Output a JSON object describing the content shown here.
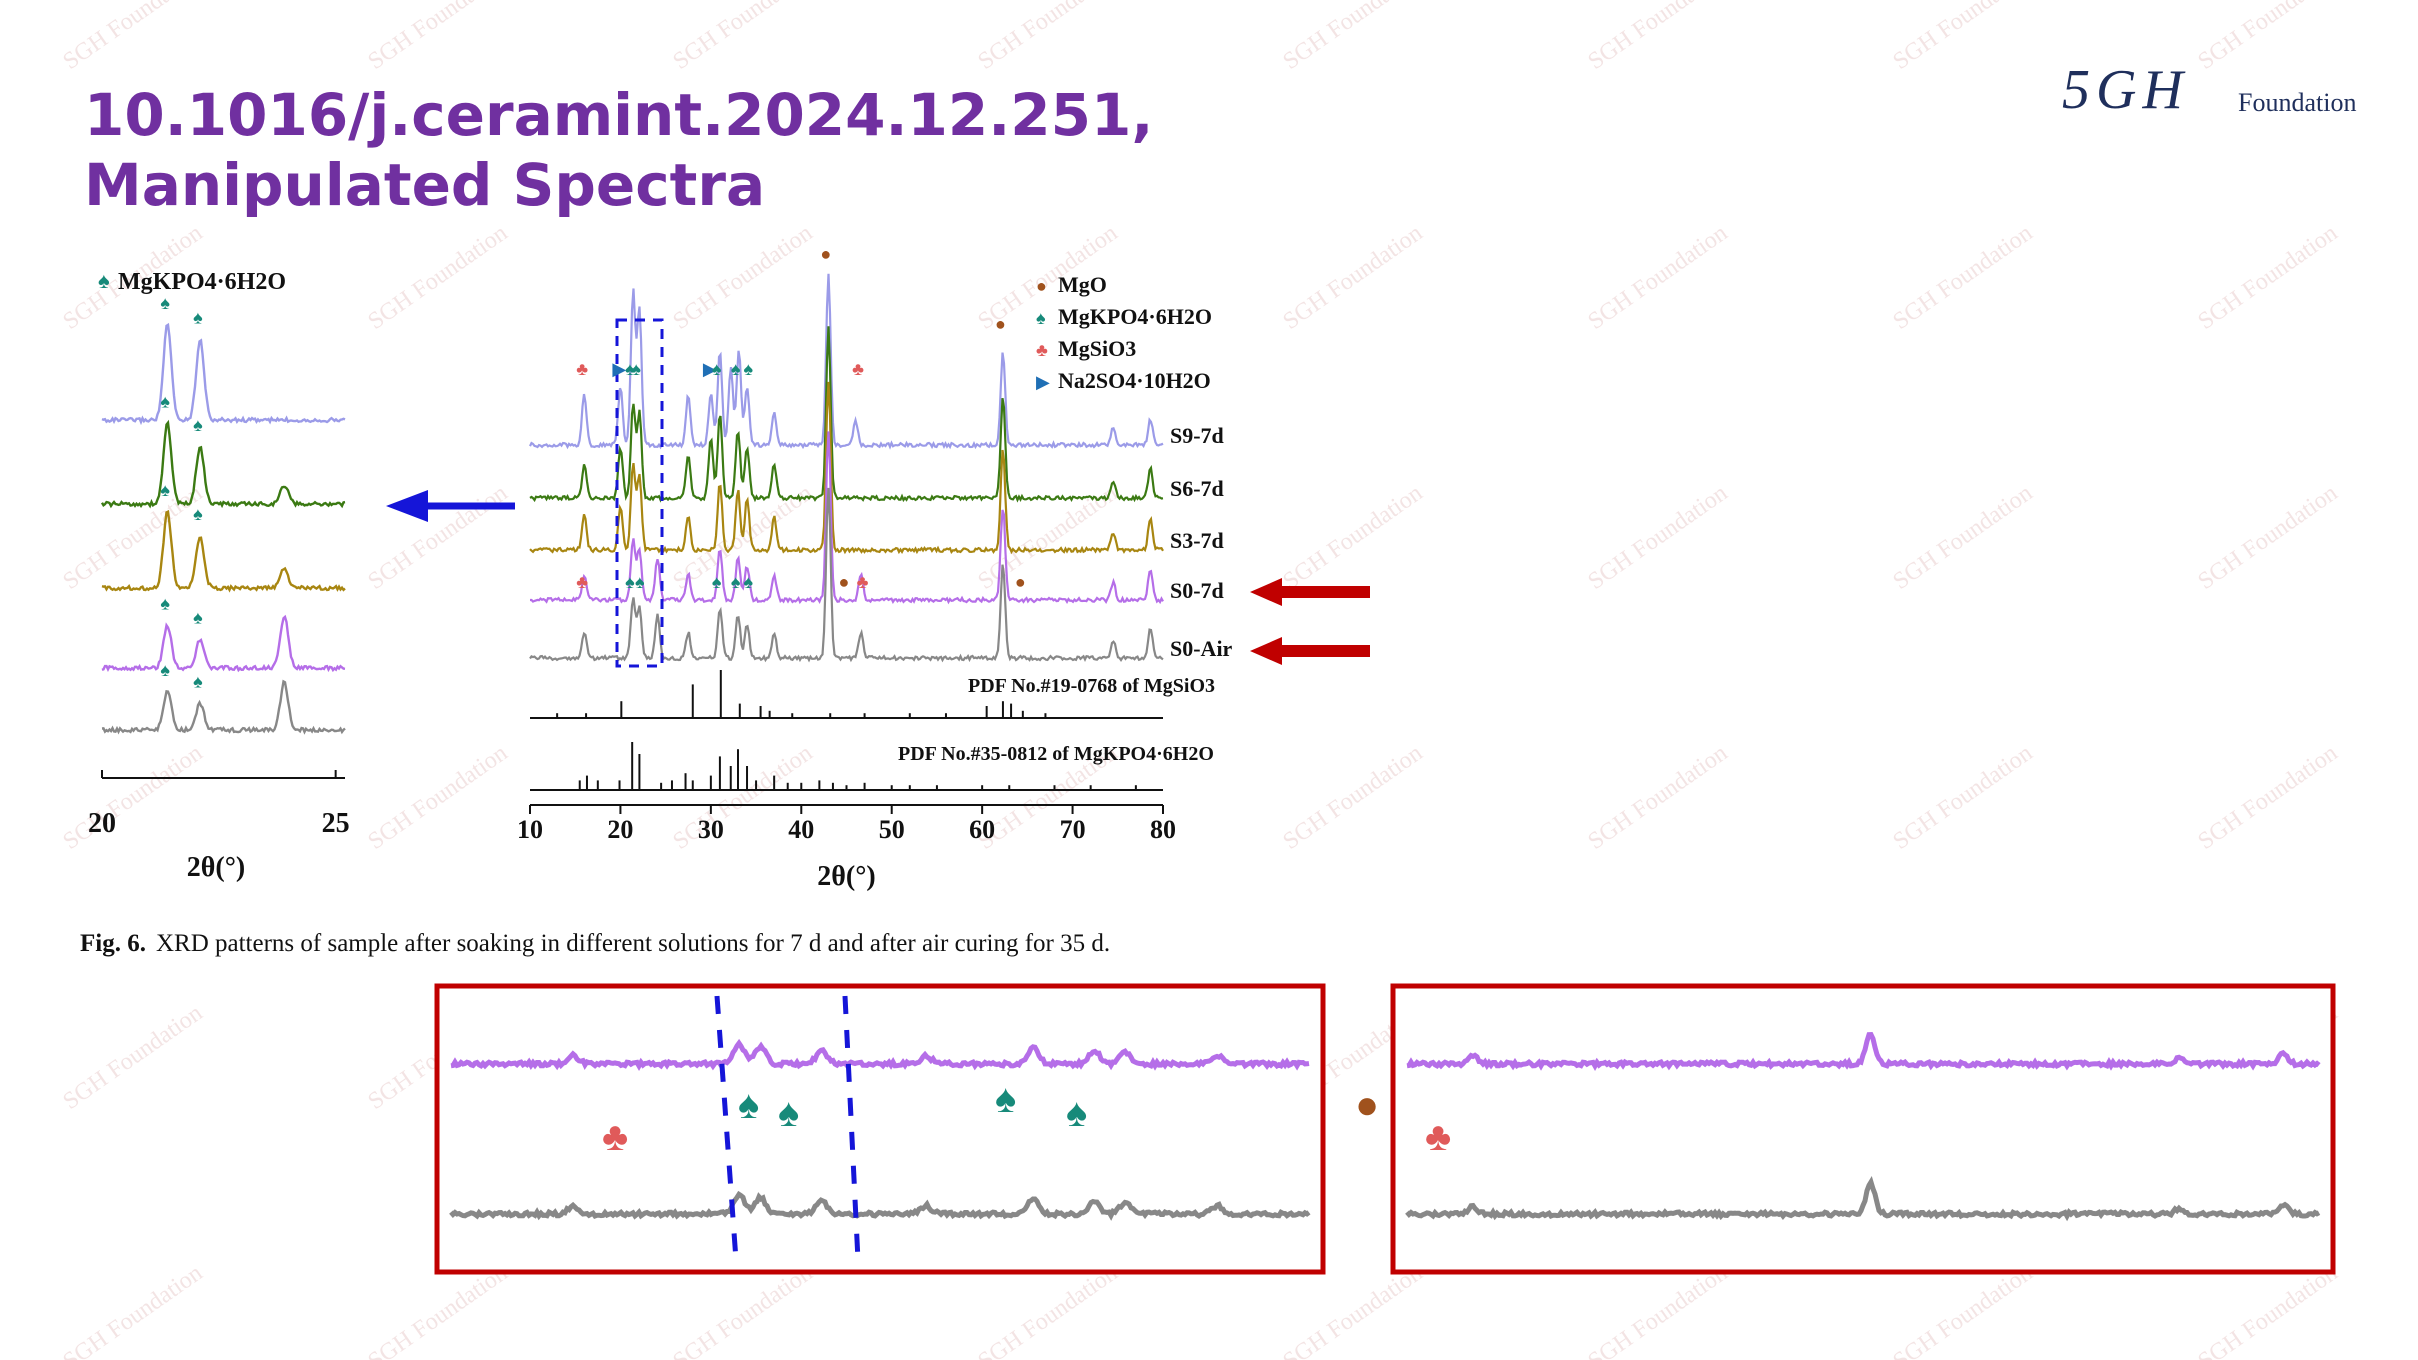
{
  "title": {
    "line1": "10.1016/j.ceramint.2024.12.251,",
    "line2": "Manipulated Spectra"
  },
  "logo": {
    "mark": "5GH",
    "text": "Foundation"
  },
  "watermark": "SGH Foundation",
  "caption": {
    "label": "Fig. 6.",
    "text": "XRD patterns of sample after soaking in different solutions for 7 d and after air curing for 35 d."
  },
  "colors": {
    "title": "#7030a0",
    "red_box": "#c00000",
    "blue_arrow": "#1515d8"
  },
  "chart_data": [
    {
      "type": "line",
      "id": "inset",
      "xlabel": "2θ(°)",
      "xticks": [
        20,
        25
      ],
      "xlim": [
        20,
        25.2
      ],
      "legend": [
        {
          "symbol": "♠",
          "label": "MgKPO4·6H2O"
        }
      ],
      "series": [
        {
          "name": "",
          "color": "#9b9be8",
          "peaks": [
            [
              21.4,
              1.0
            ],
            [
              22.1,
              0.85
            ]
          ]
        },
        {
          "name": "",
          "color": "#3b7a13",
          "peaks": [
            [
              21.4,
              0.85
            ],
            [
              22.1,
              0.6
            ],
            [
              23.9,
              0.2
            ]
          ]
        },
        {
          "name": "",
          "color": "#a88611",
          "peaks": [
            [
              21.4,
              0.8
            ],
            [
              22.1,
              0.55
            ],
            [
              23.9,
              0.2
            ]
          ]
        },
        {
          "name": "",
          "color": "#b56ee8",
          "peaks": [
            [
              21.4,
              0.45
            ],
            [
              22.1,
              0.3
            ],
            [
              23.9,
              0.55
            ]
          ]
        },
        {
          "name": "",
          "color": "#888888",
          "peaks": [
            [
              21.4,
              0.4
            ],
            [
              22.1,
              0.28
            ],
            [
              23.9,
              0.5
            ]
          ]
        }
      ]
    },
    {
      "type": "line",
      "id": "main",
      "xlabel": "2θ(°)",
      "xticks": [
        10,
        20,
        30,
        40,
        50,
        60,
        70,
        80
      ],
      "xlim": [
        10,
        80
      ],
      "legend": [
        {
          "symbol": "●",
          "label": "MgO",
          "color": "#a0521d"
        },
        {
          "symbol": "♠",
          "label": "MgKPO4·6H2O",
          "color": "#178a7a"
        },
        {
          "symbol": "♣",
          "label": "MgSiO3",
          "color": "#e05a5a"
        },
        {
          "symbol": "▶",
          "label": "Na2SO4·10H2O",
          "color": "#1f6fb5"
        }
      ],
      "series": [
        {
          "name": "S9-7d",
          "color": "#9b9be8",
          "peaks": [
            [
              16,
              0.3
            ],
            [
              20,
              0.35
            ],
            [
              21.4,
              0.9
            ],
            [
              22.1,
              0.8
            ],
            [
              27.5,
              0.3
            ],
            [
              30,
              0.3
            ],
            [
              31,
              0.55
            ],
            [
              32.2,
              0.45
            ],
            [
              33.1,
              0.55
            ],
            [
              34,
              0.35
            ],
            [
              37,
              0.2
            ],
            [
              43,
              1.0
            ],
            [
              46,
              0.15
            ],
            [
              62.3,
              0.55
            ],
            [
              74.5,
              0.1
            ],
            [
              78.6,
              0.15
            ]
          ]
        },
        {
          "name": "S6-7d",
          "color": "#3b7a13",
          "peaks": [
            [
              16,
              0.2
            ],
            [
              20,
              0.3
            ],
            [
              21.4,
              0.55
            ],
            [
              22.1,
              0.5
            ],
            [
              27.5,
              0.25
            ],
            [
              30,
              0.35
            ],
            [
              31,
              0.5
            ],
            [
              33,
              0.4
            ],
            [
              34,
              0.3
            ],
            [
              37,
              0.2
            ],
            [
              43,
              1.0
            ],
            [
              62.3,
              0.6
            ],
            [
              74.5,
              0.1
            ],
            [
              78.6,
              0.18
            ]
          ]
        },
        {
          "name": "S3-7d",
          "color": "#a88611",
          "peaks": [
            [
              16,
              0.2
            ],
            [
              20,
              0.25
            ],
            [
              21.4,
              0.5
            ],
            [
              22.1,
              0.45
            ],
            [
              27.5,
              0.2
            ],
            [
              31,
              0.4
            ],
            [
              33,
              0.35
            ],
            [
              34,
              0.3
            ],
            [
              37,
              0.2
            ],
            [
              43,
              1.0
            ],
            [
              62.3,
              0.6
            ],
            [
              74.5,
              0.1
            ],
            [
              78.6,
              0.18
            ]
          ]
        },
        {
          "name": "S0-7d",
          "color": "#b56ee8",
          "peaks": [
            [
              16,
              0.15
            ],
            [
              21.4,
              0.35
            ],
            [
              22.1,
              0.3
            ],
            [
              24.1,
              0.25
            ],
            [
              27.5,
              0.15
            ],
            [
              31,
              0.3
            ],
            [
              33,
              0.25
            ],
            [
              34,
              0.2
            ],
            [
              37,
              0.15
            ],
            [
              43,
              1.0
            ],
            [
              46.6,
              0.15
            ],
            [
              62.3,
              0.55
            ],
            [
              74.5,
              0.1
            ],
            [
              78.6,
              0.18
            ]
          ]
        },
        {
          "name": "S0-Air",
          "color": "#888888",
          "peaks": [
            [
              16,
              0.15
            ],
            [
              21.4,
              0.35
            ],
            [
              22.1,
              0.3
            ],
            [
              24.1,
              0.25
            ],
            [
              27.5,
              0.15
            ],
            [
              31,
              0.3
            ],
            [
              33,
              0.25
            ],
            [
              34,
              0.2
            ],
            [
              37,
              0.15
            ],
            [
              43,
              1.0
            ],
            [
              46.6,
              0.15
            ],
            [
              62.3,
              0.55
            ],
            [
              74.5,
              0.1
            ],
            [
              78.6,
              0.18
            ]
          ]
        }
      ],
      "series_labels": [
        "S9-7d",
        "S6-7d",
        "S3-7d",
        "S0-7d",
        "S0-Air"
      ],
      "references": [
        {
          "label": "PDF No.#19-0768 of  MgSiO3",
          "sticks": [
            [
              13,
              0.1
            ],
            [
              16.2,
              0.1
            ],
            [
              20.1,
              0.35
            ],
            [
              28,
              0.7
            ],
            [
              31.1,
              1.0
            ],
            [
              33.2,
              0.3
            ],
            [
              35.5,
              0.25
            ],
            [
              36.5,
              0.15
            ],
            [
              39,
              0.1
            ],
            [
              43.2,
              0.1
            ],
            [
              47,
              0.1
            ],
            [
              52,
              0.1
            ],
            [
              56,
              0.1
            ],
            [
              60.5,
              0.25
            ],
            [
              62.3,
              0.35
            ],
            [
              63.2,
              0.3
            ],
            [
              64.5,
              0.15
            ],
            [
              67,
              0.1
            ]
          ]
        },
        {
          "label": "PDF No.#35-0812 of  MgKPO4·6H2O",
          "sticks": [
            [
              15.5,
              0.2
            ],
            [
              16.3,
              0.3
            ],
            [
              17.5,
              0.2
            ],
            [
              19.9,
              0.2
            ],
            [
              21.3,
              1.0
            ],
            [
              22.1,
              0.75
            ],
            [
              24.5,
              0.15
            ],
            [
              25.7,
              0.2
            ],
            [
              27.2,
              0.35
            ],
            [
              28,
              0.2
            ],
            [
              30,
              0.3
            ],
            [
              31,
              0.7
            ],
            [
              32.2,
              0.5
            ],
            [
              33,
              0.85
            ],
            [
              34,
              0.5
            ],
            [
              35,
              0.2
            ],
            [
              37,
              0.3
            ],
            [
              38.5,
              0.15
            ],
            [
              40,
              0.15
            ],
            [
              42,
              0.2
            ],
            [
              43.5,
              0.15
            ],
            [
              45,
              0.1
            ],
            [
              47,
              0.15
            ],
            [
              50,
              0.1
            ],
            [
              52,
              0.1
            ],
            [
              55,
              0.1
            ],
            [
              60,
              0.1
            ],
            [
              63,
              0.1
            ],
            [
              68,
              0.1
            ],
            [
              72,
              0.1
            ],
            [
              77,
              0.1
            ]
          ]
        }
      ]
    }
  ]
}
